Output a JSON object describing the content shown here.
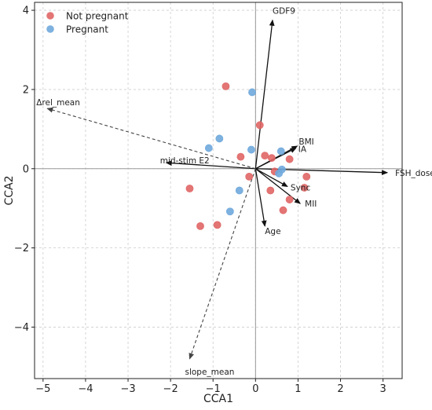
{
  "chart_data": {
    "type": "scatter",
    "xlabel": "CCA1",
    "ylabel": "CCA2",
    "xlim": [
      -5.2,
      3.45
    ],
    "ylim": [
      -5.3,
      4.2
    ],
    "xticks": [
      -5,
      -4,
      -3,
      -2,
      -1,
      0,
      1,
      2,
      3
    ],
    "yticks": [
      -4,
      -2,
      0,
      2,
      4
    ],
    "grid": true,
    "legend_position": "top-left",
    "series": [
      {
        "name": "Not pregnant",
        "color": "#e06666",
        "points": [
          [
            -0.7,
            2.08
          ],
          [
            0.1,
            1.1
          ],
          [
            0.22,
            0.33
          ],
          [
            0.38,
            0.27
          ],
          [
            -0.35,
            0.3
          ],
          [
            0.8,
            0.24
          ],
          [
            -0.15,
            -0.2
          ],
          [
            0.45,
            -0.07
          ],
          [
            1.2,
            -0.2
          ],
          [
            0.35,
            -0.55
          ],
          [
            1.15,
            -0.48
          ],
          [
            -1.55,
            -0.5
          ],
          [
            0.8,
            -0.78
          ],
          [
            0.65,
            -1.05
          ],
          [
            -1.3,
            -1.45
          ],
          [
            -0.9,
            -1.42
          ]
        ]
      },
      {
        "name": "Pregnant",
        "color": "#6fa8dc",
        "points": [
          [
            -0.08,
            1.93
          ],
          [
            -0.85,
            0.76
          ],
          [
            -1.1,
            0.52
          ],
          [
            -0.1,
            0.48
          ],
          [
            0.6,
            0.44
          ],
          [
            0.55,
            -0.12
          ],
          [
            0.62,
            -0.02
          ],
          [
            -0.38,
            -0.55
          ],
          [
            -0.6,
            -1.08
          ]
        ]
      }
    ],
    "vectors": [
      {
        "label": "GDF9",
        "x": 0.4,
        "y": 3.75,
        "style": "solid"
      },
      {
        "label": "BMI",
        "x": 0.98,
        "y": 0.57,
        "style": "solid"
      },
      {
        "label": "IA",
        "x": 0.95,
        "y": 0.52,
        "style": "solid"
      },
      {
        "label": "FSH_dose",
        "x": 3.1,
        "y": -0.1,
        "style": "solid"
      },
      {
        "label": "Sync",
        "x": 0.75,
        "y": -0.45,
        "style": "solid"
      },
      {
        "label": "MII",
        "x": 1.05,
        "y": -0.88,
        "style": "solid"
      },
      {
        "label": "Age",
        "x": 0.22,
        "y": -1.45,
        "style": "solid"
      },
      {
        "label": "mid-stim E2",
        "x": -2.1,
        "y": 0.15,
        "style": "solid"
      },
      {
        "label": "Δrel_mean",
        "x": -4.9,
        "y": 1.52,
        "style": "dashed"
      },
      {
        "label": "slope_mean",
        "x": -1.55,
        "y": -4.8,
        "style": "dashed"
      }
    ]
  }
}
